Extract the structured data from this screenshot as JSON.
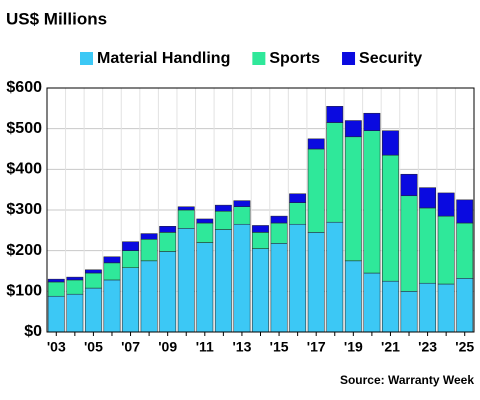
{
  "chart_data": {
    "type": "stacked_bar",
    "title": "US$ Millions",
    "source": "Source: Warranty Week",
    "categories": [
      "'03",
      null,
      "'05",
      null,
      "'07",
      null,
      "'09",
      null,
      "'11",
      null,
      "'13",
      null,
      "'15",
      null,
      "'17",
      null,
      "'19",
      null,
      "'21",
      null,
      "'23",
      null,
      "'25"
    ],
    "series": [
      {
        "name": "Material Handling",
        "color": "#3cc8f5",
        "values": [
          88,
          93,
          108,
          128,
          158,
          175,
          198,
          255,
          220,
          252,
          265,
          205,
          218,
          265,
          245,
          270,
          175,
          145,
          125,
          100,
          120,
          118,
          132
        ]
      },
      {
        "name": "Sports",
        "color": "#2fe89a",
        "values": [
          35,
          35,
          37,
          42,
          42,
          53,
          47,
          45,
          48,
          45,
          43,
          40,
          50,
          53,
          205,
          245,
          305,
          350,
          310,
          235,
          185,
          167,
          136
        ]
      },
      {
        "name": "Security",
        "color": "#0a0ae0",
        "values": [
          7,
          7,
          8,
          15,
          22,
          14,
          15,
          8,
          10,
          15,
          15,
          17,
          17,
          22,
          25,
          40,
          40,
          43,
          60,
          53,
          50,
          57,
          57
        ]
      }
    ],
    "ylim": [
      0,
      600
    ],
    "yticks": [
      {
        "value": 0,
        "label": "$0"
      },
      {
        "value": 100,
        "label": "$100"
      },
      {
        "value": 200,
        "label": "$200"
      },
      {
        "value": 300,
        "label": "$300"
      },
      {
        "value": 400,
        "label": "$400"
      },
      {
        "value": 500,
        "label": "$500"
      },
      {
        "value": 600,
        "label": "$600"
      }
    ],
    "grid": true
  }
}
